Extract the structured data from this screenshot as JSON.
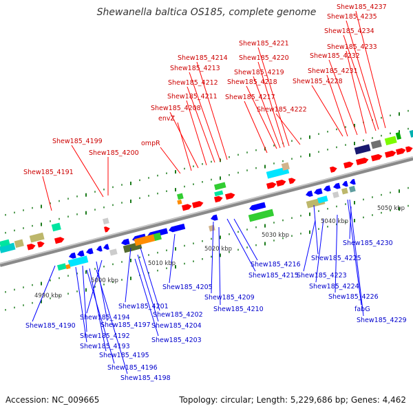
{
  "title": "Shewanella baltica OS185, complete genome",
  "accession": "Accession: NC_009665",
  "genome_info": "Topology: circular; Length: 5,229,686 bp; Genes: 4,462",
  "colors": {
    "plus_strand": "#ff0000",
    "minus_strand": "#0000ff",
    "backbone": "#8a8a8a",
    "tick": "#1a7a1a"
  },
  "kbp_labels": [
    "4990 kbp",
    "5000 kbp",
    "5010 kbp",
    "5020 kbp",
    "5030 kbp",
    "5040 kbp",
    "5050 kbp"
  ],
  "top_genes": [
    "Shew185_4237",
    "Shew185_4235",
    "Shew185_4234",
    "Shew185_4233",
    "Shew185_4232",
    "Shew185_4231",
    "Shew185_4228",
    "Shew185_4221",
    "Shew185_4220",
    "Shew185_4219",
    "Shew185_4218",
    "Shew185_4217",
    "Shew185_4222",
    "Shew185_4214",
    "Shew185_4213",
    "Shew185_4212",
    "Shew185_4211",
    "Shew185_4208",
    "envZ",
    "ompR",
    "Shew185_4199",
    "Shew185_4200",
    "Shew185_4191"
  ],
  "bottom_genes": [
    "Shew185_4230",
    "Shew185_4225",
    "Shew185_4223",
    "Shew185_4224",
    "Shew185_4226",
    "fabG",
    "Shew185_4229",
    "Shew185_4216",
    "Shew185_4215",
    "Shew185_4209",
    "Shew185_4210",
    "Shew185_4205",
    "Shew185_4201",
    "Shew185_4202",
    "Shew185_4204",
    "Shew185_4203",
    "Shew185_4194",
    "Shew185_4197",
    "Shew185_4190",
    "Shew185_4192",
    "Shew185_4193",
    "Shew185_4195",
    "Shew185_4196",
    "Shew185_4198"
  ]
}
